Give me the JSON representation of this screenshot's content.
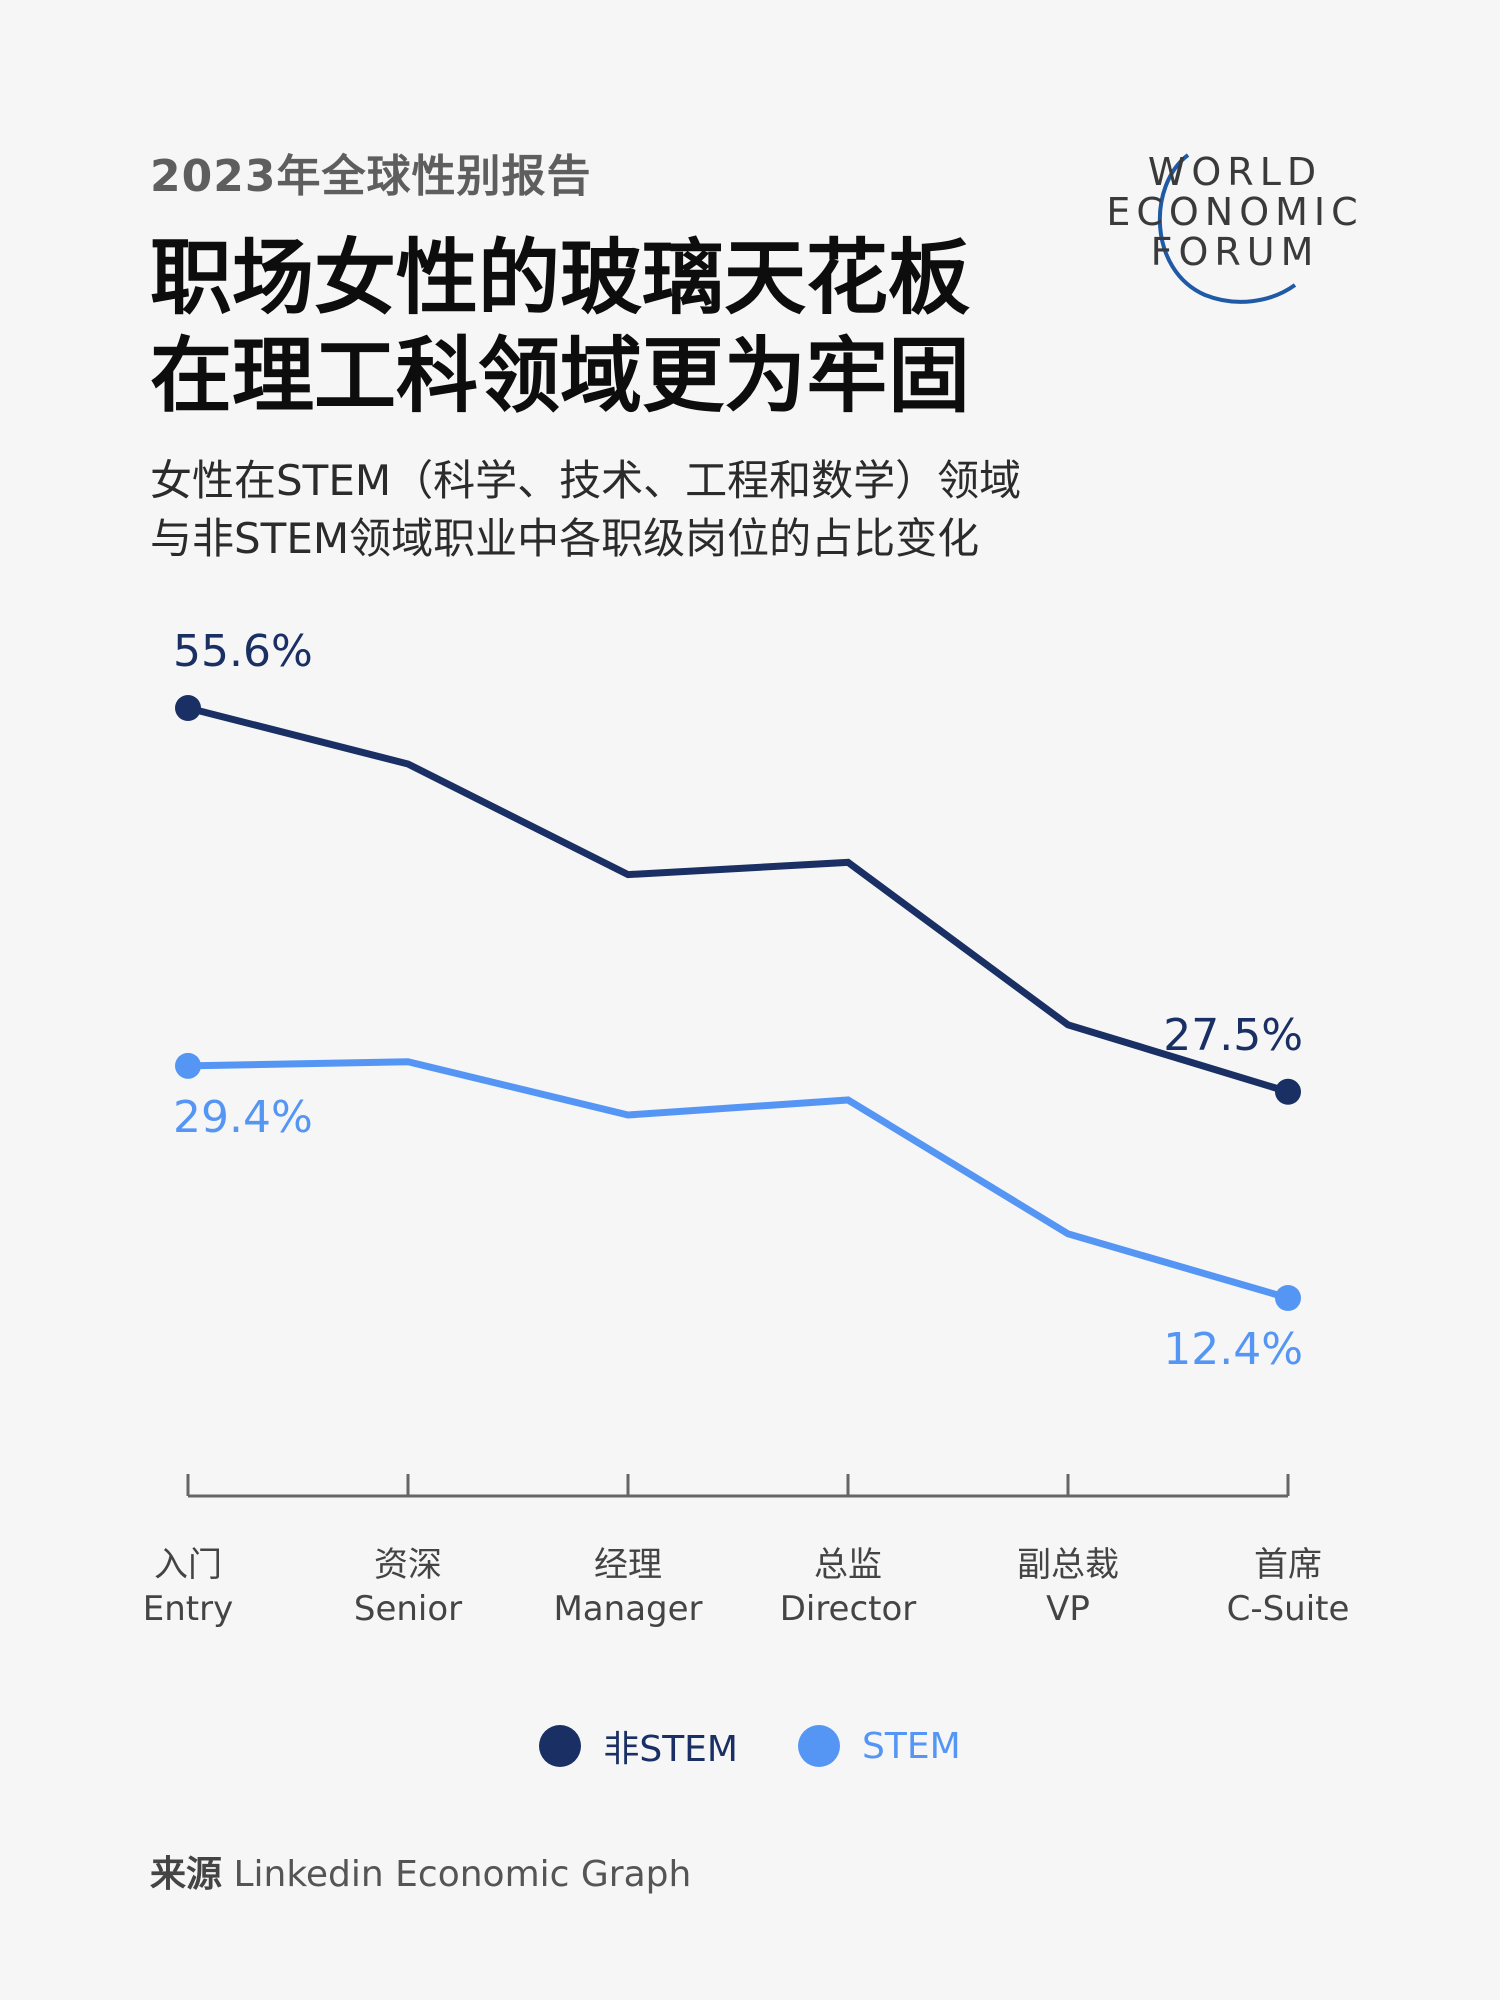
{
  "header": {
    "eyebrow": "2023年全球性别报告",
    "title_line1": "职场女性的玻璃天花板",
    "title_line2": "在理工科领域更为牢固",
    "subtitle_line1": "女性在STEM（科学、技术、工程和数学）领域",
    "subtitle_line2": "与非STEM领域职业中各职级岗位的占比变化"
  },
  "logo": {
    "line1": "WORLD",
    "line2": "ECONOMIC",
    "line3": "FORUM"
  },
  "colors": {
    "non_stem": "#1a2f63",
    "stem": "#5596f5",
    "axis": "#666666",
    "background": "#f6f6f6"
  },
  "chart_data": {
    "type": "line",
    "title": "",
    "xlabel": "",
    "ylabel": "",
    "ylim": [
      0,
      60
    ],
    "grid": false,
    "legend": "bottom-center",
    "categories": [
      {
        "zh": "入门",
        "en": "Entry"
      },
      {
        "zh": "资深",
        "en": "Senior"
      },
      {
        "zh": "经理",
        "en": "Manager"
      },
      {
        "zh": "总监",
        "en": "Director"
      },
      {
        "zh": "副总裁",
        "en": "VP"
      },
      {
        "zh": "首席",
        "en": "C-Suite"
      }
    ],
    "series": [
      {
        "name": "非STEM",
        "key": "non_stem",
        "values": [
          55.6,
          51.5,
          43.4,
          44.3,
          32.4,
          27.5
        ],
        "labels": [
          {
            "index": 0,
            "text": "55.6%"
          },
          {
            "index": 5,
            "text": "27.5%"
          }
        ]
      },
      {
        "name": "STEM",
        "key": "stem",
        "values": [
          29.4,
          29.7,
          25.8,
          26.9,
          17.1,
          12.4
        ],
        "labels": [
          {
            "index": 0,
            "text": "29.4%"
          },
          {
            "index": 5,
            "text": "12.4%"
          }
        ]
      }
    ]
  },
  "legend": [
    {
      "label": "非STEM",
      "key": "non_stem"
    },
    {
      "label": "STEM",
      "key": "stem"
    }
  ],
  "source": {
    "prefix": "来源",
    "text": "Linkedin Economic Graph"
  }
}
